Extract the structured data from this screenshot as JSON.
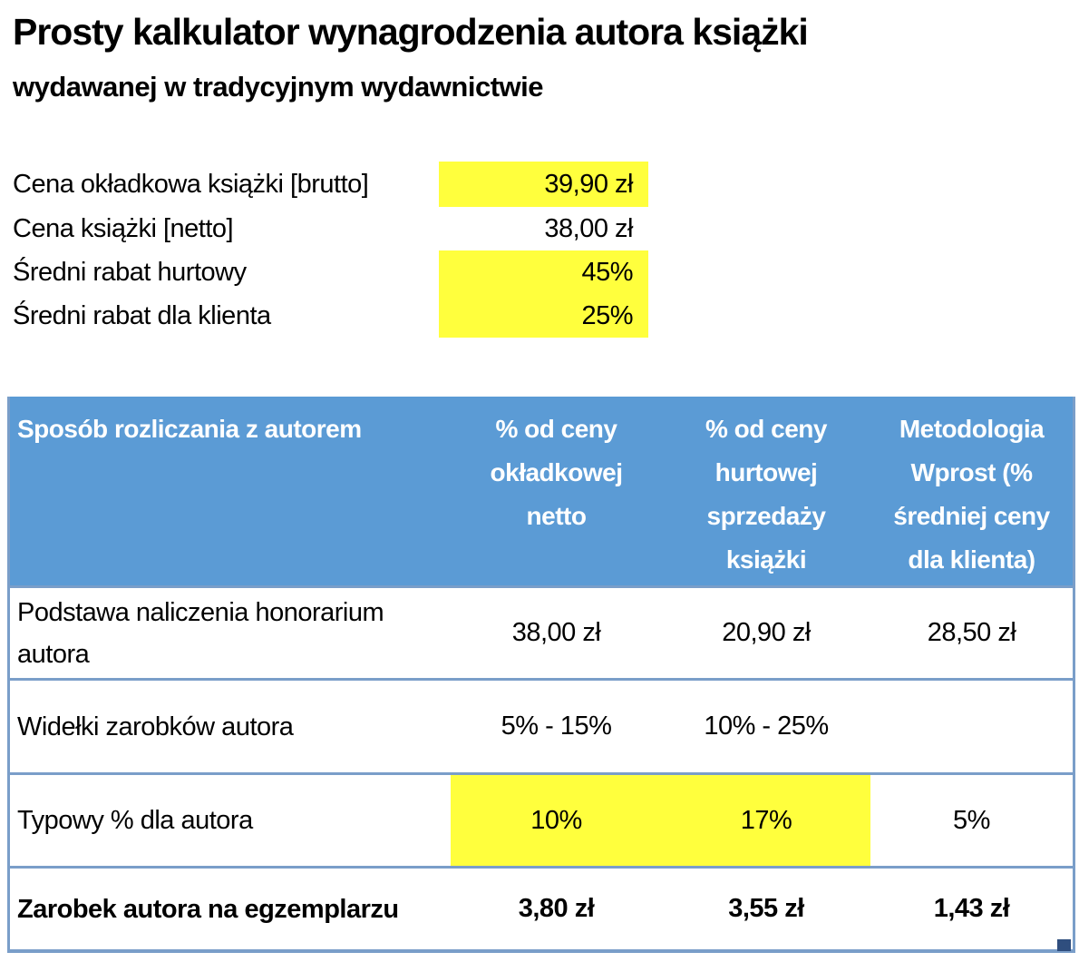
{
  "title": "Prosty kalkulator wynagrodzenia autora książki",
  "subtitle": "wydawanej w tradycyjnym wydawnictwie",
  "inputs": {
    "rows": [
      {
        "label": "Cena okładkowa książki [brutto]",
        "value": "39,90 zł",
        "highlighted": true
      },
      {
        "label": "Cena książki [netto]",
        "value": "38,00 zł",
        "highlighted": false
      },
      {
        "label": "Średni rabat hurtowy",
        "value": "45%",
        "highlighted": true
      },
      {
        "label": "Średni rabat dla klienta",
        "value": "25%",
        "highlighted": true
      }
    ]
  },
  "table": {
    "header": {
      "col1": "Sposób rozliczania z autorem",
      "col2": "% od ceny\nokładkowej\nnetto",
      "col3": "% od ceny\nhurtowej\nsprzedaży\nksiążki",
      "col4": "Metodologia\nWprost (%\nśredniej ceny\ndla klienta)"
    },
    "rows": [
      {
        "label": "Podstawa naliczenia honorarium\nautora",
        "values": [
          "38,00 zł",
          "20,90 zł",
          "28,50 zł"
        ]
      },
      {
        "label": "Widełki zarobków autora",
        "values": [
          "5% - 15%",
          "10% - 25%",
          ""
        ]
      },
      {
        "label": "Typowy % dla autora",
        "values": [
          "10%",
          "17%",
          "5%"
        ]
      },
      {
        "label": "Zarobek autora na egzemplarzu",
        "values": [
          "3,80 zł",
          "3,55 zł",
          "1,43 zł"
        ]
      }
    ]
  },
  "colors": {
    "header_bg": "#5b9bd5",
    "highlight": "#ffff3d",
    "border": "#7a9ec9",
    "handle": "#2f4e7e",
    "text": "#000000",
    "header_text": "#ffffff"
  }
}
